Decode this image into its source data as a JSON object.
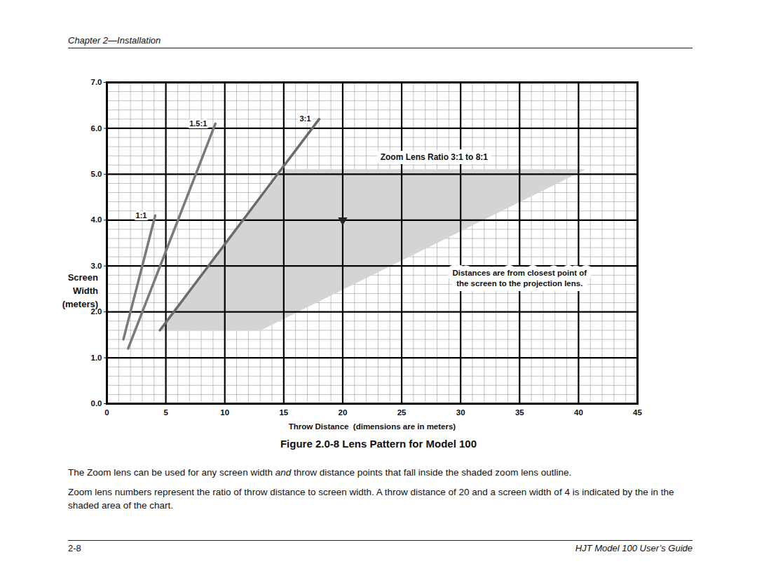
{
  "header": {
    "chapter": "Chapter 2—Installation"
  },
  "chart_data": {
    "type": "line",
    "xlabel": "Throw Distance  (dimensions are in meters)",
    "ylabel": [
      "Screen",
      "Width",
      "(meters)"
    ],
    "xlim": [
      0,
      45
    ],
    "xticks": [
      0,
      5,
      10,
      15,
      20,
      25,
      30,
      35,
      40,
      45
    ],
    "ylim": [
      0,
      7
    ],
    "yticks": [
      0,
      1,
      2,
      3,
      4,
      5,
      6,
      7
    ],
    "grid": true,
    "series": [
      {
        "name": "Zoom Lens Ratio 3:1 to 8:1",
        "type": "area",
        "color": "#d4d4d4",
        "x": [
          4.5,
          15,
          40.5,
          13
        ],
        "values": [
          1.6,
          5.1,
          5.1,
          1.6
        ]
      },
      {
        "name": "1:1",
        "type": "line",
        "color": "#7a7a7a",
        "x": [
          1.4,
          4.1
        ],
        "values": [
          1.4,
          4.1
        ]
      },
      {
        "name": "1.5:1",
        "type": "line",
        "color": "#7a7a7a",
        "x": [
          1.8,
          9.2
        ],
        "values": [
          1.2,
          6.1
        ]
      },
      {
        "name": "3:1",
        "type": "line",
        "color": "#6a6a6a",
        "x": [
          4.5,
          18
        ],
        "values": [
          1.6,
          6.2
        ]
      },
      {
        "type": "scatter",
        "marker": "triangle-down",
        "color": "#222222",
        "x": [
          20
        ],
        "values": [
          4
        ]
      }
    ],
    "annotations": [
      {
        "text": [
          "Distances are from closest point of",
          "the screen to the projection lens."
        ],
        "x": 35,
        "y": 2.75
      }
    ]
  },
  "caption": "Figure 2.0-8 Lens Pattern for Model 100",
  "paragraphs": [
    {
      "parts": [
        "The Zoom lens can be used for any screen width ",
        "and",
        " throw distance points that fall inside the shaded zoom lens outline."
      ]
    },
    {
      "parts": [
        "Zoom lens numbers represent the ratio of throw distance to screen width.  A throw distance of 20 and a screen width of 4 is indicated by the   in the shaded area of the chart."
      ]
    }
  ],
  "footer": {
    "page": "2-8",
    "title": "HJT Model 100 User’s Guide"
  }
}
